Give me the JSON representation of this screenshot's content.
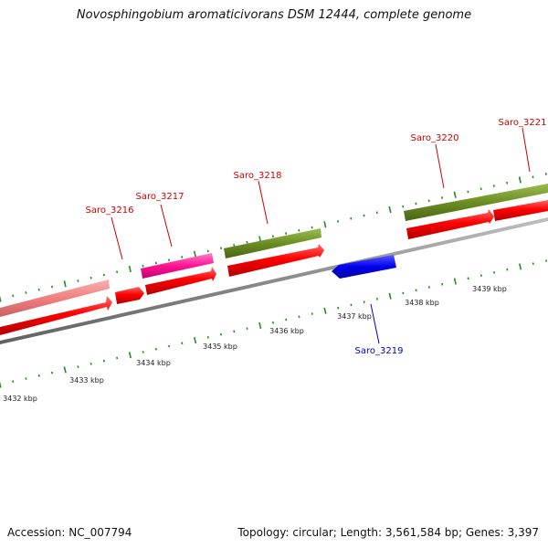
{
  "title": "Novosphingobium aromaticivorans DSM 12444, complete genome",
  "footer": {
    "accession": "Accession: NC_007794",
    "summary": "Topology: circular; Length: 3,561,584 bp; Genes: 3,397"
  },
  "colors": {
    "backbone": "#8a8a8a",
    "tick": "#1f8f1f",
    "forward_gene": "#ff0000",
    "reverse_gene": "#0000ee",
    "forward_label": "#cc0000",
    "reverse_label": "#0000cc",
    "scale_label": "#222222"
  },
  "scale": {
    "labels": [
      "3432 kbp",
      "3433 kbp",
      "3434 kbp",
      "3435 kbp",
      "3436 kbp",
      "3437 kbp",
      "3438 kbp",
      "3439 kbp"
    ]
  },
  "genes": [
    {
      "id": "Saro_3216",
      "label": "Saro_3216",
      "strand": "+"
    },
    {
      "id": "Saro_3217",
      "label": "Saro_3217",
      "strand": "+"
    },
    {
      "id": "Saro_3218",
      "label": "Saro_3218",
      "strand": "+"
    },
    {
      "id": "Saro_3219",
      "label": "Saro_3219",
      "strand": "-"
    },
    {
      "id": "Saro_3220",
      "label": "Saro_3220",
      "strand": "+"
    },
    {
      "id": "Saro_3221",
      "label": "Saro_3221",
      "strand": "+"
    }
  ],
  "feature_colors": [
    "#f08080",
    "#ff1493",
    "#6b8e23"
  ]
}
